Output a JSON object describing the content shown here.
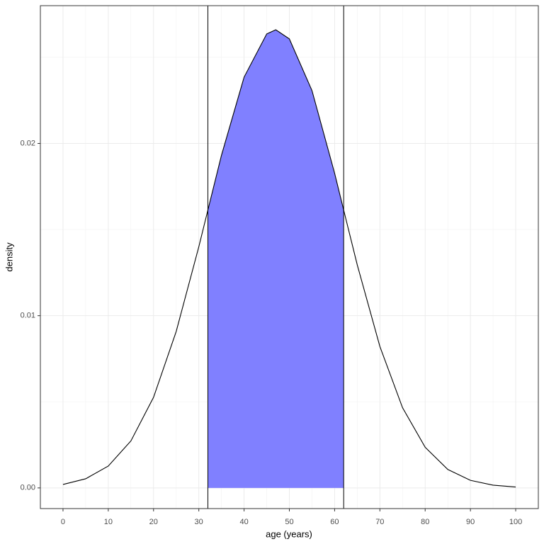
{
  "chart_data": {
    "type": "line",
    "xlabel": "age (years)",
    "ylabel": "density",
    "x": [
      0,
      5,
      10,
      15,
      20,
      25,
      30,
      32,
      35,
      40,
      45,
      47,
      50,
      55,
      60,
      62,
      65,
      70,
      75,
      80,
      85,
      90,
      95,
      100
    ],
    "values": [
      0.0002,
      0.00053,
      0.00127,
      0.00273,
      0.00526,
      0.00908,
      0.014,
      0.01613,
      0.01931,
      0.02385,
      0.02636,
      0.0266,
      0.02607,
      0.02307,
      0.01827,
      0.01613,
      0.01295,
      0.00821,
      0.00466,
      0.00236,
      0.00107,
      0.00044,
      0.00016,
      5e-05
    ],
    "color": "#000000",
    "shade": {
      "x": [
        32,
        35,
        40,
        45,
        47,
        50,
        55,
        60,
        62
      ],
      "values": [
        0.01613,
        0.01931,
        0.02385,
        0.02636,
        0.0266,
        0.02607,
        0.02307,
        0.01827,
        0.01613
      ],
      "color": "#8080ff"
    },
    "vlines": [
      32,
      62
    ],
    "xlim": [
      -5,
      105
    ],
    "ylim": [
      -0.0012,
      0.028
    ],
    "xticks": [
      0,
      10,
      20,
      30,
      40,
      50,
      60,
      70,
      80,
      90,
      100
    ],
    "yticks": [
      {
        "value": 0,
        "label": "0.00"
      },
      {
        "value": 0.01,
        "label": "0.01"
      },
      {
        "value": 0.02,
        "label": "0.02"
      }
    ],
    "minor_xticks": [
      5,
      15,
      25,
      35,
      45,
      55,
      65,
      75,
      85,
      95
    ],
    "minor_yticks": [
      0.005,
      0.015,
      0.025
    ],
    "grid": true
  }
}
